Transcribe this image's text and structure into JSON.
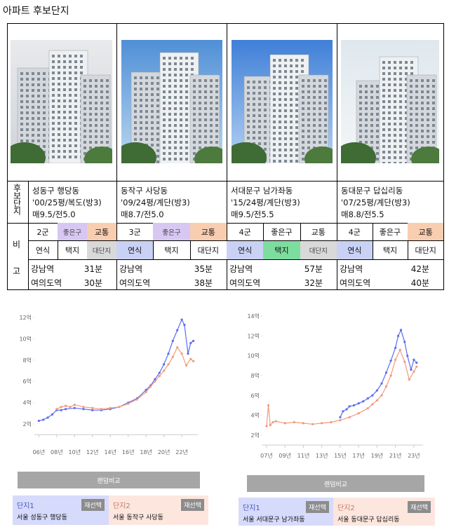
{
  "title": "아파트 후보단지",
  "table": {
    "candidates_header": "후보단지",
    "notes_header": [
      "비",
      "고"
    ],
    "complexes": [
      {
        "location": "성동구 행당동",
        "spec": "'00/25평/복도(방3)",
        "price": "매9.5/전5.0",
        "tags": [
          [
            {
              "label": "2군"
            },
            {
              "label": "좋은구",
              "color": "#d6c8f2"
            },
            {
              "label": "교통",
              "color": "#f8cdb0"
            }
          ],
          [
            {
              "label": "연식"
            },
            {
              "label": "택지"
            },
            {
              "label": "대단지",
              "color": "#d9d9d9"
            }
          ]
        ],
        "commute": [
          {
            "station": "강남역",
            "time": "31분"
          },
          {
            "station": "여의도역",
            "time": "30분"
          }
        ]
      },
      {
        "location": "동작구 사당동",
        "spec": "'09/24평/계단(방3)",
        "price": "매8.7/전5.0",
        "tags": [
          [
            {
              "label": "3군"
            },
            {
              "label": "좋은구",
              "color": "#d6c8f2"
            },
            {
              "label": "교통",
              "color": "#f8cdb0"
            }
          ],
          [
            {
              "label": "연식",
              "color": "#c9d2f5"
            },
            {
              "label": "택지"
            },
            {
              "label": "대단지"
            }
          ]
        ],
        "commute": [
          {
            "station": "강남역",
            "time": "35분"
          },
          {
            "station": "여의도역",
            "time": "38분"
          }
        ]
      },
      {
        "location": "서대문구 남가좌동",
        "spec": "'15/24평/계단(방3)",
        "price": "매9.5/전5.5",
        "tags": [
          [
            {
              "label": "4군"
            },
            {
              "label": "좋은구"
            },
            {
              "label": "교통"
            }
          ],
          [
            {
              "label": "연식",
              "color": "#c9d2f5"
            },
            {
              "label": "택지",
              "color": "#7ddd9f"
            },
            {
              "label": "대단지",
              "color": "#d9d9d9"
            }
          ]
        ],
        "commute": [
          {
            "station": "강남역",
            "time": "57분"
          },
          {
            "station": "여의도역",
            "time": "32분"
          }
        ]
      },
      {
        "location": "동대문구 답십리동",
        "spec": "'07/25평/계단(방3)",
        "price": "매8.8/전5.5",
        "tags": [
          [
            {
              "label": "4군"
            },
            {
              "label": "좋은구"
            },
            {
              "label": "교통",
              "color": "#f8cdb0"
            }
          ],
          [
            {
              "label": "연식",
              "color": "#c9d2f5"
            },
            {
              "label": "택지"
            },
            {
              "label": "대단지"
            }
          ]
        ],
        "commute": [
          {
            "station": "강남역",
            "time": "42분"
          },
          {
            "station": "여의도역",
            "time": "40분"
          }
        ]
      }
    ]
  },
  "chart_data": [
    {
      "type": "line",
      "button": "랜덤비교",
      "xlim": [
        2005.5,
        2023.8
      ],
      "ylim": [
        1,
        12.5
      ],
      "xticks": [
        {
          "value": 2006,
          "label": "06년"
        },
        {
          "value": 2008,
          "label": "08년"
        },
        {
          "value": 2010,
          "label": "10년"
        },
        {
          "value": 2012,
          "label": "12년"
        },
        {
          "value": 2014,
          "label": "14년"
        },
        {
          "value": 2016,
          "label": "16년"
        },
        {
          "value": 2018,
          "label": "18년"
        },
        {
          "value": 2020,
          "label": "20년"
        },
        {
          "value": 2022,
          "label": "22년"
        }
      ],
      "yticks": [
        {
          "value": 2,
          "label": "2억"
        },
        {
          "value": 4,
          "label": "4억"
        },
        {
          "value": 6,
          "label": "6억"
        },
        {
          "value": 8,
          "label": "8억"
        },
        {
          "value": 10,
          "label": "10억"
        },
        {
          "value": 12,
          "label": "12억"
        }
      ],
      "series": [
        {
          "name": "단지1",
          "location": "서울 성동구 행당동",
          "button": "재선택",
          "color": "#5b6cf0",
          "x": [
            2006,
            2006.5,
            2007,
            2007.5,
            2008,
            2008.5,
            2009,
            2010,
            2011,
            2012,
            2013,
            2014,
            2015,
            2016,
            2017,
            2018,
            2018.5,
            2019,
            2019.5,
            2020,
            2020.5,
            2021,
            2021.5,
            2022,
            2022.3,
            2022.7,
            2023,
            2023.3
          ],
          "values": [
            2.3,
            2.4,
            2.6,
            2.9,
            3.3,
            3.3,
            3.4,
            3.5,
            3.4,
            3.3,
            3.3,
            3.4,
            3.6,
            4.0,
            4.4,
            5.2,
            5.6,
            6.2,
            6.8,
            7.6,
            8.6,
            9.8,
            10.8,
            11.8,
            11.3,
            8.6,
            9.6,
            9.8
          ]
        },
        {
          "name": "단지2",
          "location": "서울 동작구 사당동",
          "button": "재선택",
          "color": "#f39a7c",
          "x": [
            2008,
            2008.5,
            2009,
            2009.5,
            2010,
            2011,
            2012,
            2013,
            2014,
            2015,
            2016,
            2017,
            2018,
            2018.5,
            2019,
            2019.5,
            2020,
            2020.5,
            2021,
            2021.5,
            2022,
            2022.5,
            2023,
            2023.3
          ],
          "values": [
            3.4,
            3.6,
            3.7,
            3.6,
            3.8,
            3.6,
            3.5,
            3.4,
            3.5,
            3.6,
            3.9,
            4.3,
            5.0,
            5.5,
            6.0,
            6.5,
            7.0,
            7.6,
            8.3,
            9.2,
            8.6,
            7.5,
            8.1,
            7.9
          ]
        }
      ]
    },
    {
      "type": "line",
      "button": "랜덤비교",
      "xlim": [
        2006.5,
        2024
      ],
      "ylim": [
        1,
        14.5
      ],
      "xticks": [
        {
          "value": 2007,
          "label": "07년"
        },
        {
          "value": 2009,
          "label": "09년"
        },
        {
          "value": 2011,
          "label": "11년"
        },
        {
          "value": 2013,
          "label": "13년"
        },
        {
          "value": 2015,
          "label": "15년"
        },
        {
          "value": 2017,
          "label": "17년"
        },
        {
          "value": 2019,
          "label": "19년"
        },
        {
          "value": 2021,
          "label": "21년"
        },
        {
          "value": 2023,
          "label": "23년"
        }
      ],
      "yticks": [
        {
          "value": 2,
          "label": "2억"
        },
        {
          "value": 4,
          "label": "4억"
        },
        {
          "value": 6,
          "label": "6억"
        },
        {
          "value": 8,
          "label": "8억"
        },
        {
          "value": 10,
          "label": "10억"
        },
        {
          "value": 12,
          "label": "12억"
        },
        {
          "value": 14,
          "label": "14억"
        }
      ],
      "series": [
        {
          "name": "단지1",
          "location": "서울 서대문구 남가좌동",
          "button": "재선택",
          "color": "#5b6cf0",
          "x": [
            2015,
            2015.3,
            2015.7,
            2016,
            2016.5,
            2017,
            2017.5,
            2018,
            2018.5,
            2019,
            2019.5,
            2020,
            2020.5,
            2021,
            2021.3,
            2021.6,
            2022,
            2022.3,
            2022.7,
            2023,
            2023.3
          ],
          "values": [
            3.8,
            4.4,
            4.6,
            4.9,
            5.0,
            5.2,
            5.4,
            5.7,
            6.0,
            6.5,
            7.2,
            8.3,
            9.5,
            10.8,
            12.0,
            12.6,
            11.4,
            10.0,
            8.6,
            9.6,
            9.3
          ]
        },
        {
          "name": "단지2",
          "location": "서울 동대문구 답십리동",
          "button": "재선택",
          "color": "#f39a7c",
          "x": [
            2007,
            2007.2,
            2007.4,
            2007.7,
            2008,
            2009,
            2010,
            2011,
            2012,
            2013,
            2014,
            2015,
            2016,
            2017,
            2018,
            2018.5,
            2019,
            2019.5,
            2020,
            2020.5,
            2021,
            2021.5,
            2022,
            2022.5,
            2023,
            2023.3
          ],
          "values": [
            2.9,
            5.0,
            3.0,
            3.3,
            3.4,
            3.2,
            3.3,
            3.2,
            3.1,
            3.2,
            3.3,
            3.5,
            3.8,
            4.2,
            4.7,
            5.1,
            5.5,
            6.0,
            6.9,
            8.0,
            9.6,
            10.6,
            9.4,
            7.6,
            8.4,
            8.9
          ]
        }
      ]
    }
  ]
}
